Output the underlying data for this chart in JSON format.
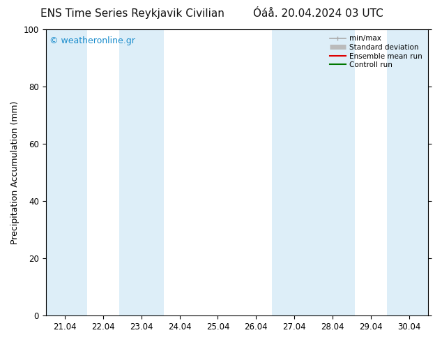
{
  "title_left": "ENS Time Series Reykjavik Civilian",
  "title_right": "Óáå. 20.04.2024 03 UTC",
  "ylabel": "Precipitation Accumulation (mm)",
  "ylim": [
    0,
    100
  ],
  "yticks": [
    0,
    20,
    40,
    60,
    80,
    100
  ],
  "x_tick_labels": [
    "21.04",
    "22.04",
    "23.04",
    "24.04",
    "25.04",
    "26.04",
    "27.04",
    "28.04",
    "29.04",
    "30.04"
  ],
  "x_tick_positions": [
    0,
    1,
    2,
    3,
    4,
    5,
    6,
    7,
    8,
    9
  ],
  "xlim": [
    -0.5,
    9.5
  ],
  "watermark": "© weatheronline.gr",
  "watermark_color": "#1a8ccc",
  "bg_color": "#ffffff",
  "plot_bg_color": "#ffffff",
  "shaded_bands": [
    {
      "x_start": -0.5,
      "x_end": 0.58,
      "color": "#ddeef8"
    },
    {
      "x_start": 1.42,
      "x_end": 2.58,
      "color": "#ddeef8"
    },
    {
      "x_start": 5.42,
      "x_end": 7.58,
      "color": "#ddeef8"
    },
    {
      "x_start": 8.42,
      "x_end": 9.5,
      "color": "#ddeef8"
    }
  ],
  "legend_entries": [
    {
      "label": "min/max",
      "color": "#aaaaaa",
      "lw": 1.2
    },
    {
      "label": "Standard deviation",
      "color": "#bbbbbb",
      "lw": 5
    },
    {
      "label": "Ensemble mean run",
      "color": "#dd0000",
      "lw": 1.5
    },
    {
      "label": "Controll run",
      "color": "#007700",
      "lw": 1.5
    }
  ],
  "title_fontsize": 11,
  "axis_label_fontsize": 9,
  "tick_fontsize": 8.5,
  "watermark_fontsize": 9
}
